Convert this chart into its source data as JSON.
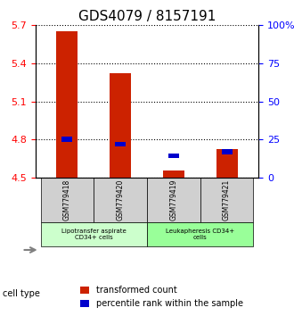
{
  "title": "GDS4079 / 8157191",
  "samples": [
    "GSM779418",
    "GSM779420",
    "GSM779419",
    "GSM779421"
  ],
  "red_values": [
    5.655,
    5.325,
    4.555,
    4.72
  ],
  "blue_values": [
    4.8,
    4.763,
    4.67,
    4.7
  ],
  "ymin": 4.5,
  "ymax": 5.7,
  "yticks_left": [
    4.5,
    4.8,
    5.1,
    5.4,
    5.7
  ],
  "yticks_right": [
    0,
    25,
    50,
    75,
    100
  ],
  "groups": [
    {
      "label": "Lipotransfer aspirate\nCD34+ cells",
      "samples": [
        0,
        1
      ],
      "color": "#ccffcc"
    },
    {
      "label": "Leukapheresis CD34+\ncells",
      "samples": [
        2,
        3
      ],
      "color": "#99ff99"
    }
  ],
  "group_header": "cell type",
  "bar_color": "#cc2200",
  "square_color": "#0000cc",
  "bar_width": 0.4,
  "title_fontsize": 11,
  "tick_fontsize": 8,
  "label_fontsize": 7,
  "legend_fontsize": 7,
  "background_color": "#f0f0f0",
  "plot_bg": "#ffffff",
  "header_bg": "#d0d0d0"
}
